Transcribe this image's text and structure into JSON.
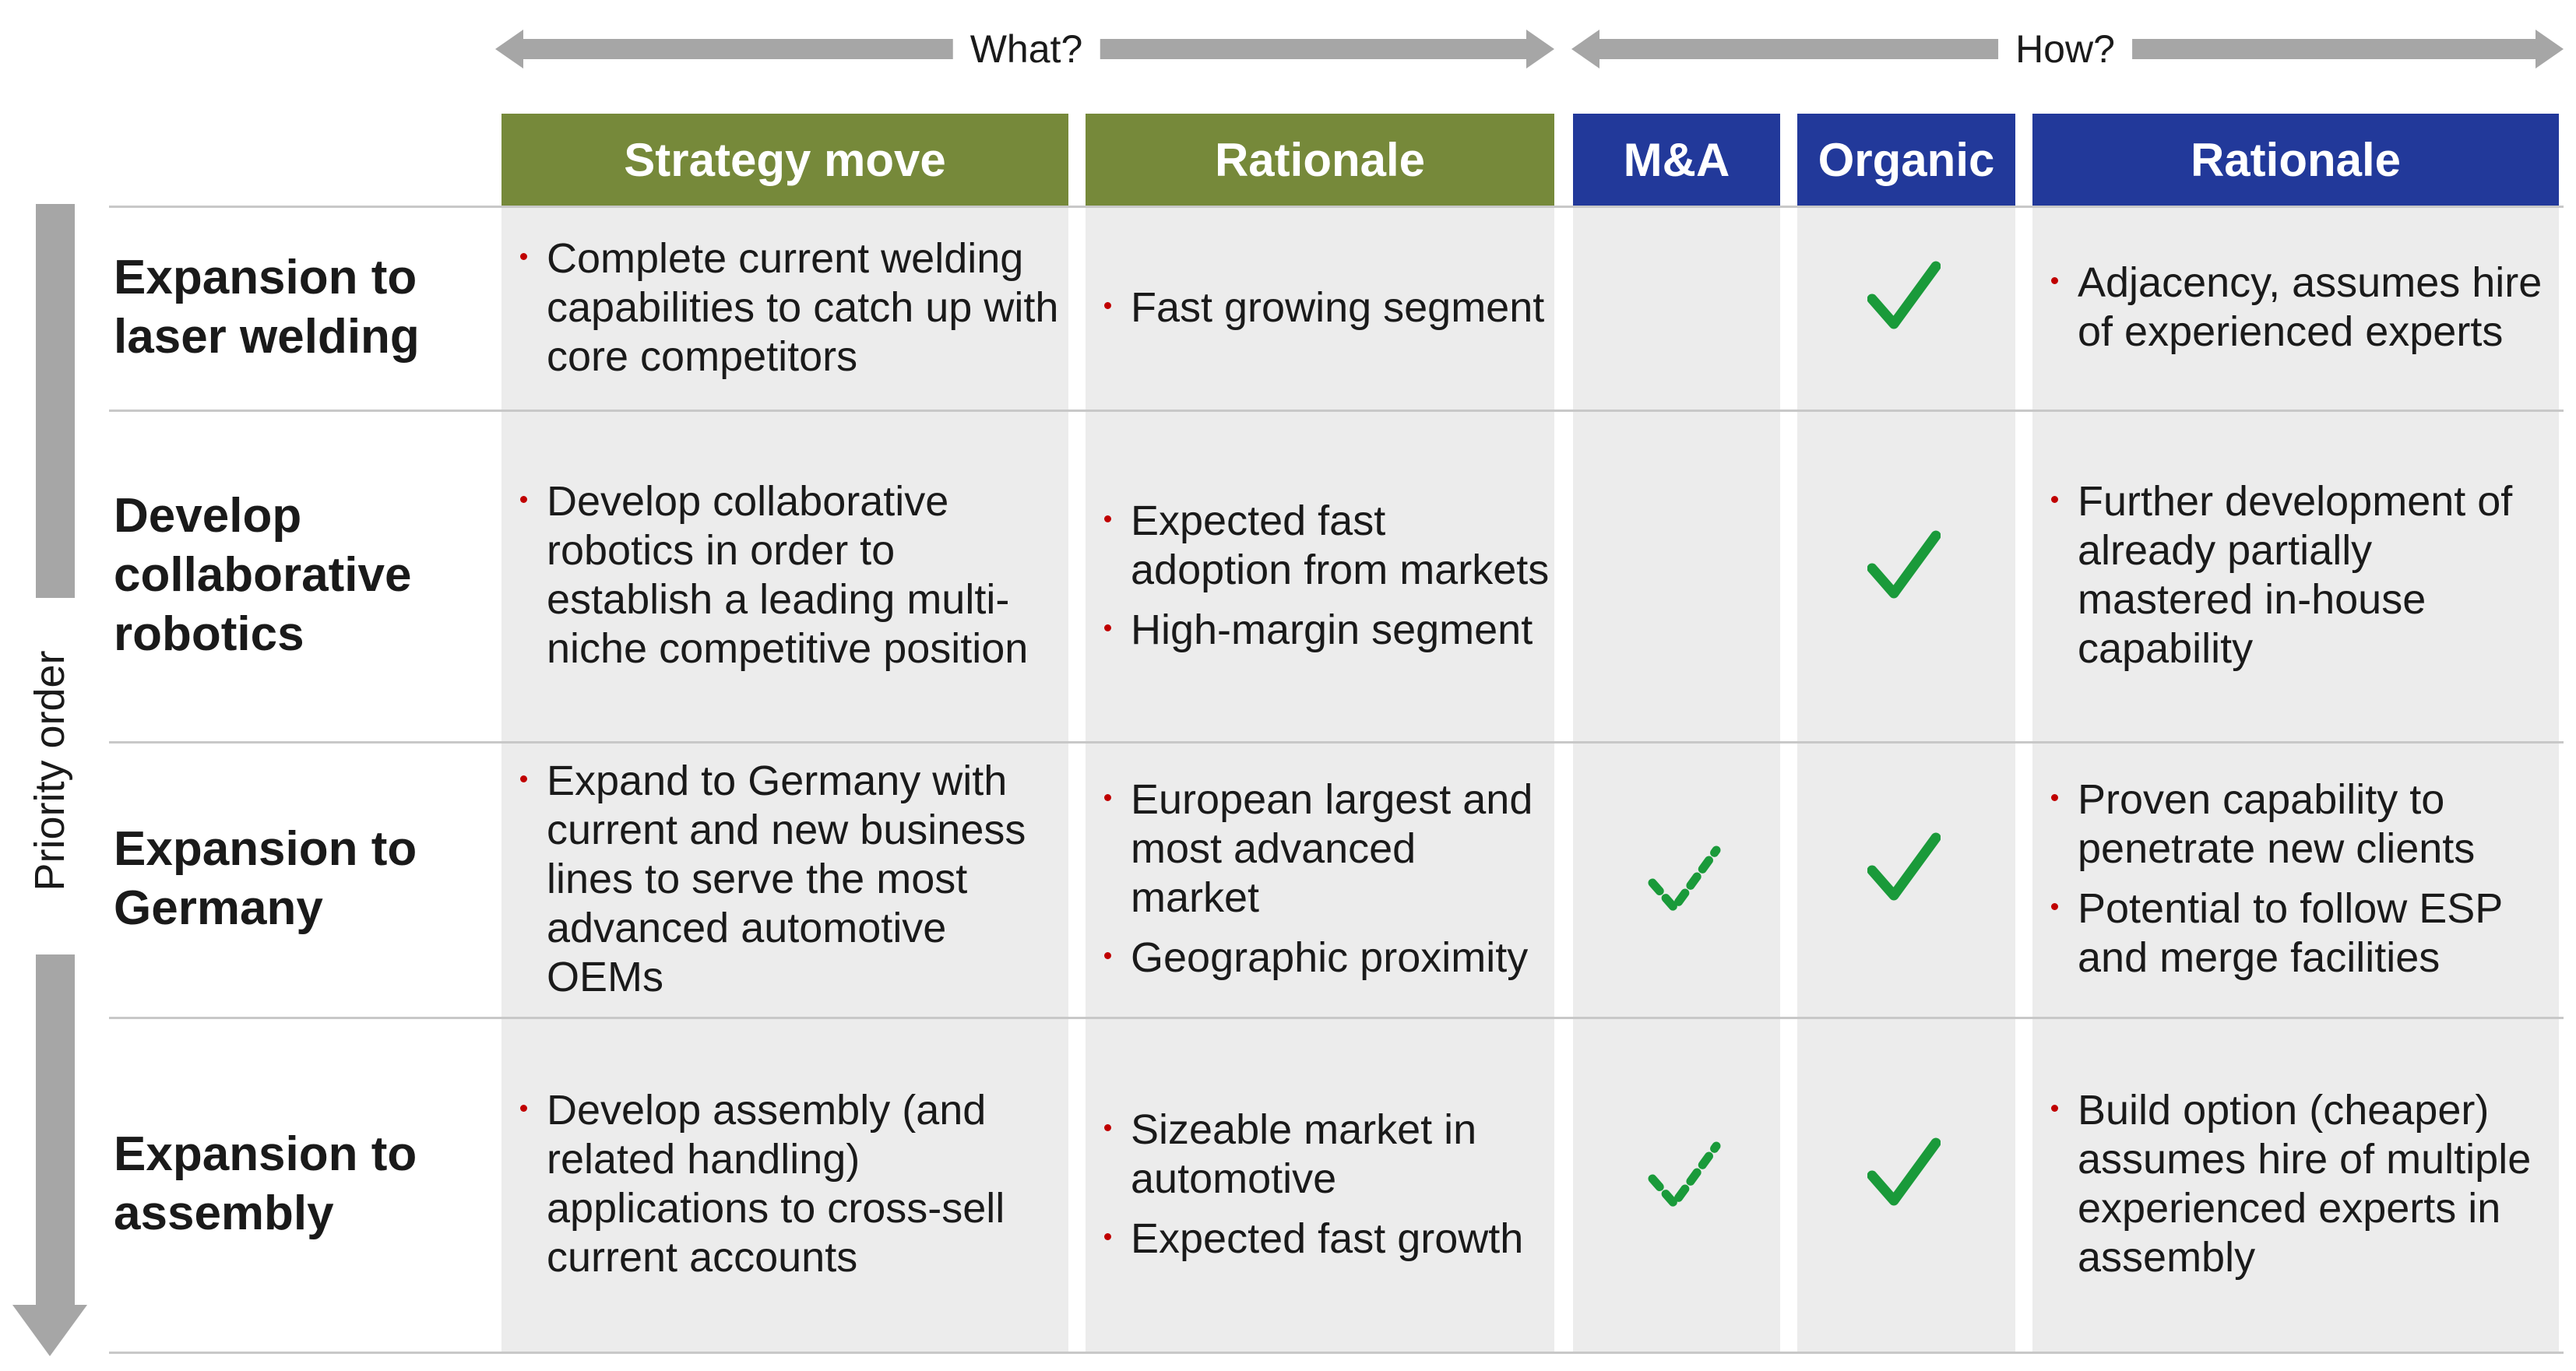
{
  "arrows": {
    "what": "What?",
    "how": "How?",
    "priority": "Priority order"
  },
  "headers": {
    "strategy_move": "Strategy move",
    "rationale_what": "Rationale",
    "ma": "M&A",
    "organic": "Organic",
    "rationale_how": "Rationale"
  },
  "colors": {
    "green_header": "#76893a",
    "blue_header": "#22399a",
    "check": "#1a9a3a",
    "bullet": "#c00000",
    "cell_bg": "#ececec"
  },
  "rows": [
    {
      "label": "Expansion to laser welding",
      "strategy": [
        "Complete current welding capabilities to catch up with core competitors"
      ],
      "rationale_what": [
        "Fast growing segment"
      ],
      "ma": "none",
      "organic": "check",
      "rationale_how": [
        "Adjacency, assumes hire of experienced experts"
      ]
    },
    {
      "label": "Develop collaborative robotics",
      "strategy": [
        "Develop collaborative robotics in order to establish a leading multi-niche competitive position"
      ],
      "rationale_what": [
        "Expected fast adoption from markets",
        "High-margin segment"
      ],
      "ma": "none",
      "organic": "check",
      "rationale_how": [
        "Further development of already partially mastered in-house capability"
      ]
    },
    {
      "label": "Expansion to Germany",
      "strategy": [
        "Expand to Germany with current and new business lines to serve the most advanced automotive OEMs"
      ],
      "rationale_what": [
        "European largest and most advanced market",
        "Geographic proximity"
      ],
      "ma": "dashed-check",
      "organic": "check",
      "rationale_how": [
        "Proven capability to penetrate new clients",
        "Potential to follow ESP and merge facilities"
      ]
    },
    {
      "label": "Expansion to assembly",
      "strategy": [
        "Develop assembly (and related handling) applications to cross-sell current accounts"
      ],
      "rationale_what": [
        "Sizeable market in automotive",
        "Expected fast growth"
      ],
      "ma": "dashed-check",
      "organic": "check",
      "rationale_how": [
        "Build option (cheaper) assumes hire of multiple experienced experts in assembly"
      ]
    }
  ]
}
